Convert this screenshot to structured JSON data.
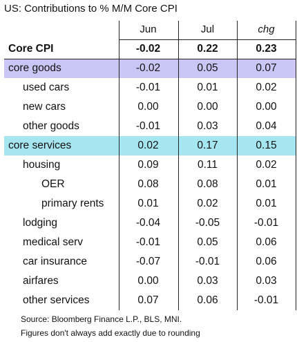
{
  "title": "US: Contributions to % M/M Core CPI",
  "columns": [
    "Jun",
    "Jul",
    "chg"
  ],
  "rows": [
    {
      "label": "Core CPI",
      "values": [
        "-0.02",
        "0.22",
        "0.23"
      ],
      "bold": true
    },
    {
      "label": "core goods",
      "values": [
        "-0.02",
        "0.05",
        "0.07"
      ],
      "color": "#cbc6f6",
      "children": [
        {
          "label": "used cars",
          "values": [
            "-0.01",
            "0.01",
            "0.02"
          ]
        },
        {
          "label": "new cars",
          "values": [
            "0.00",
            "0.00",
            "0.00"
          ]
        },
        {
          "label": "other goods",
          "values": [
            "-0.01",
            "0.03",
            "0.04"
          ]
        }
      ]
    },
    {
      "label": "core services",
      "values": [
        "0.02",
        "0.17",
        "0.15"
      ],
      "color": "#a6e6f0",
      "children": [
        {
          "label": "housing",
          "values": [
            "0.09",
            "0.11",
            "0.02"
          ],
          "children": [
            {
              "label": "OER",
              "values": [
                "0.08",
                "0.08",
                "0.01"
              ]
            },
            {
              "label": "primary rents",
              "values": [
                "0.01",
                "0.02",
                "0.01"
              ]
            }
          ]
        },
        {
          "label": "lodging",
          "values": [
            "-0.04",
            "-0.05",
            "-0.01"
          ]
        },
        {
          "label": "medical serv",
          "values": [
            "-0.01",
            "0.05",
            "0.06"
          ]
        },
        {
          "label": "car insurance",
          "values": [
            "-0.07",
            "-0.01",
            "0.06"
          ]
        },
        {
          "label": "airfares",
          "values": [
            "0.00",
            "0.03",
            "0.03"
          ]
        },
        {
          "label": "other services",
          "values": [
            "0.07",
            "0.06",
            "-0.01"
          ]
        }
      ]
    }
  ],
  "notes": [
    "Source: Bloomberg Finance L.P., BLS, MNI.",
    "Figures don't always add exactly due to rounding"
  ]
}
